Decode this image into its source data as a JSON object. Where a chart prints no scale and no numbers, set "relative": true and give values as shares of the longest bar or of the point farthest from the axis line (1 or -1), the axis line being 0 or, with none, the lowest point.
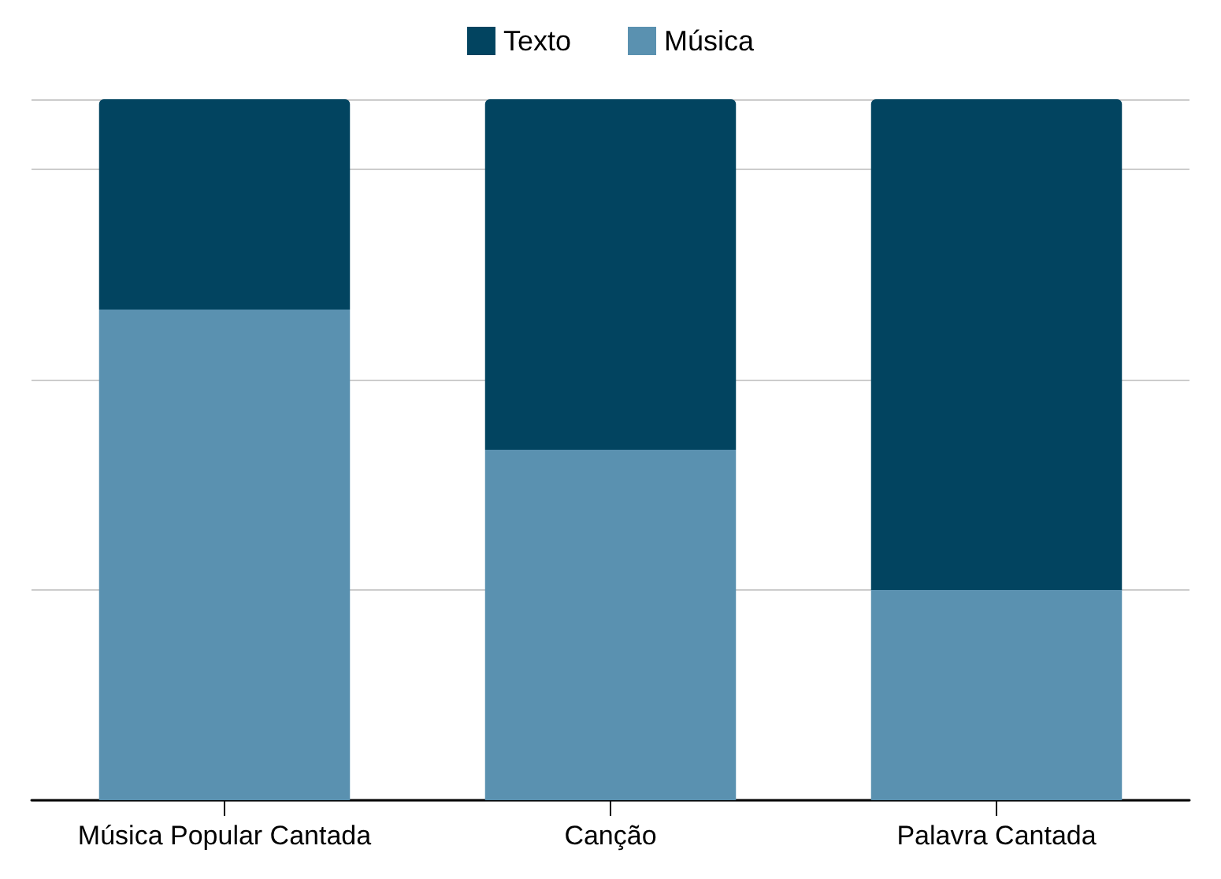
{
  "chart_data": {
    "type": "bar",
    "stacked": true,
    "relative": true,
    "categories": [
      "Música Popular Cantada",
      "Canção",
      "Palavra Cantada"
    ],
    "series": [
      {
        "name": "Música",
        "color": "#5a91b0",
        "values": [
          0.7,
          0.5,
          0.3
        ]
      },
      {
        "name": "Texto",
        "color": "#024460",
        "values": [
          0.3,
          0.5,
          0.7
        ]
      }
    ],
    "legend": "top",
    "grid": "y"
  }
}
